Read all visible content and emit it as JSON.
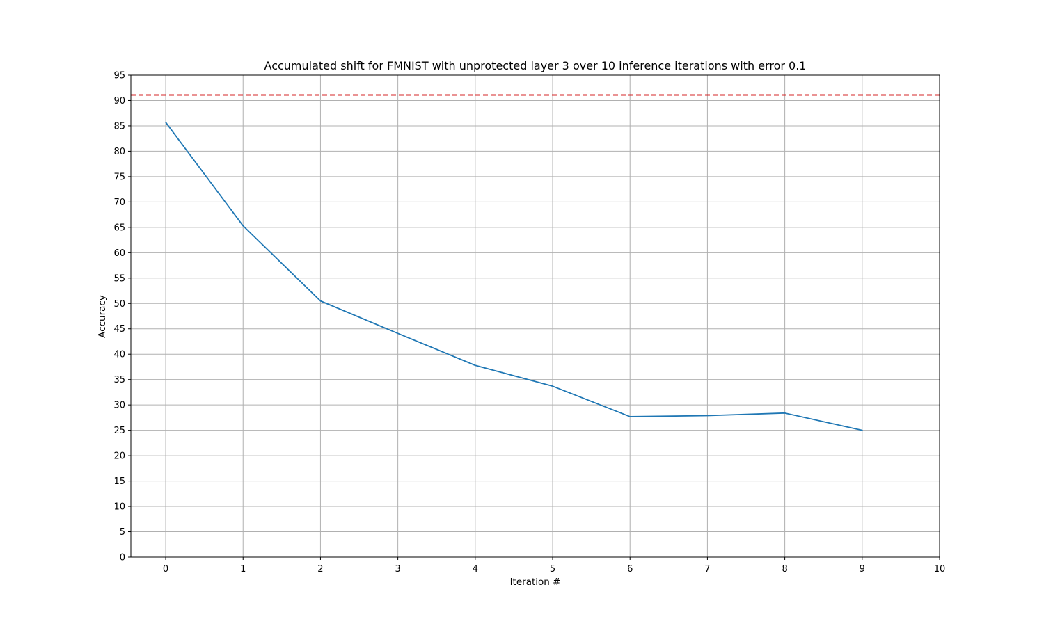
{
  "chart_data": {
    "type": "line",
    "title": "Accumulated shift for FMNIST with unprotected layer 3 over 10 inference iterations with error 0.1",
    "xlabel": "Iteration #",
    "ylabel": "Accuracy",
    "xlim": [
      -0.45,
      10
    ],
    "ylim": [
      0,
      95
    ],
    "xticks": [
      0,
      1,
      2,
      3,
      4,
      5,
      6,
      7,
      8,
      9,
      10
    ],
    "yticks": [
      0,
      5,
      10,
      15,
      20,
      25,
      30,
      35,
      40,
      45,
      50,
      55,
      60,
      65,
      70,
      75,
      80,
      85,
      90,
      95
    ],
    "grid": true,
    "series": [
      {
        "x": [
          0,
          1,
          2,
          3,
          4,
          5,
          6,
          7,
          8,
          9
        ],
        "values": [
          85.7,
          65.3,
          50.5,
          44.1,
          37.8,
          33.7,
          27.7,
          27.9,
          28.4,
          25.0
        ],
        "color": "#1f77b4"
      }
    ],
    "reference_line": {
      "y": 91.1,
      "color": "#d62728",
      "style": "dashed"
    }
  }
}
